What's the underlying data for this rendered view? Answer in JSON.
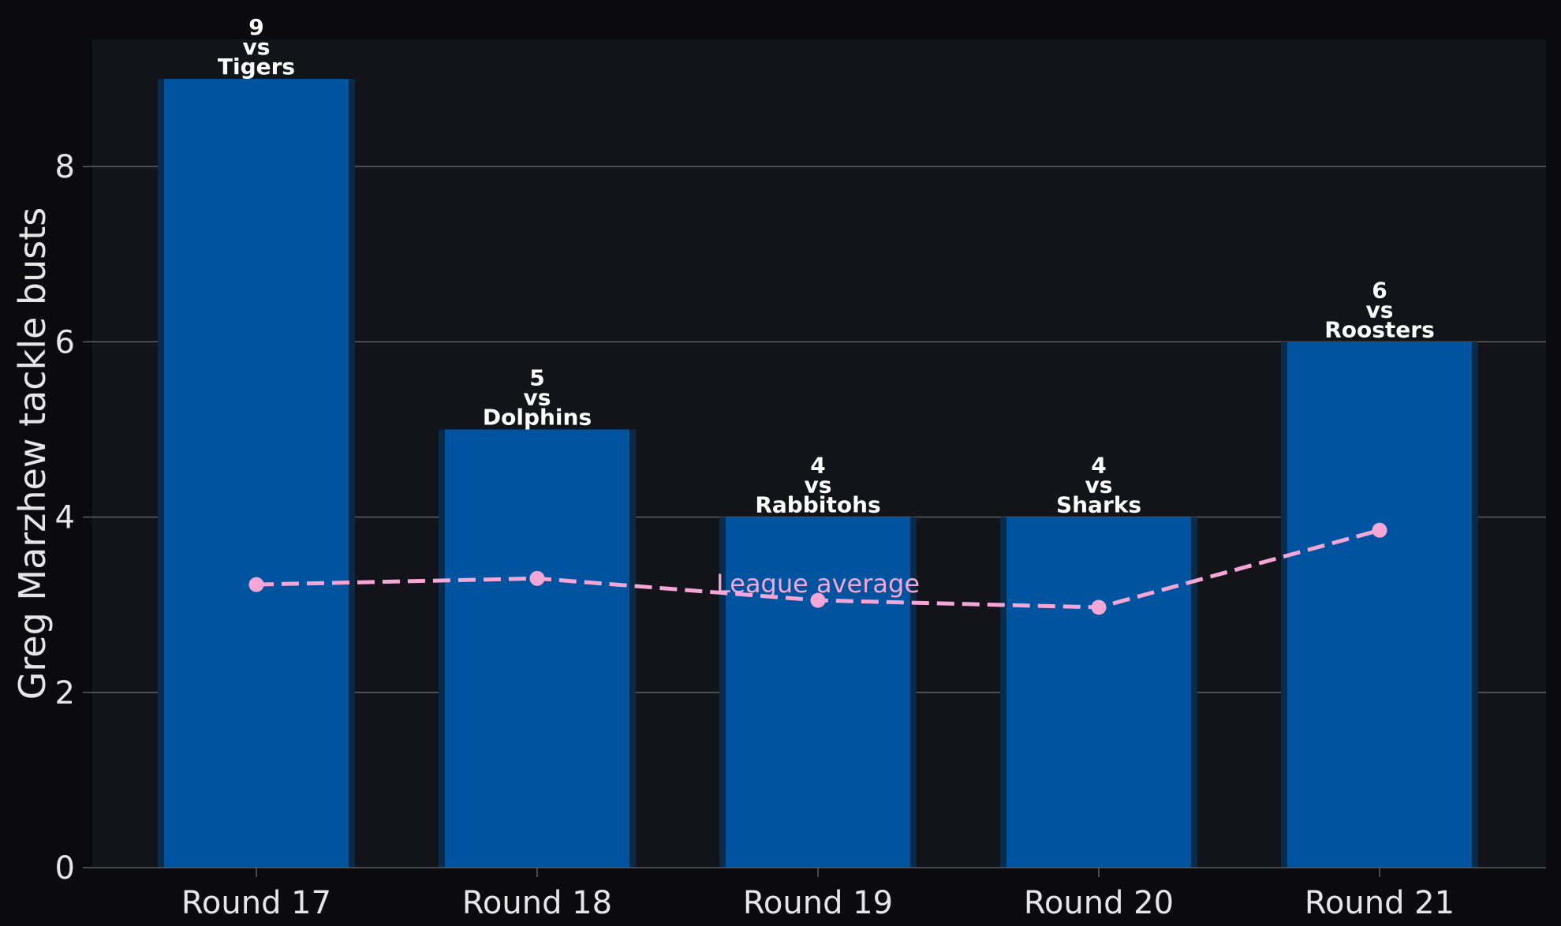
{
  "chart_data": {
    "type": "bar",
    "categories": [
      "Round 17",
      "Round 18",
      "Round 19",
      "Round 20",
      "Round 21"
    ],
    "opponents": [
      "Tigers",
      "Dolphins",
      "Rabbitohs",
      "Sharks",
      "Roosters"
    ],
    "vs_text": "vs",
    "series": [
      {
        "values": [
          9,
          5,
          4,
          4,
          6
        ]
      },
      {
        "name": "League average",
        "type": "line",
        "values": [
          3.23,
          3.3,
          3.05,
          2.97,
          3.85
        ]
      }
    ],
    "ylabel": "Greg Marzhew tackle busts",
    "xlabel": "",
    "ylim": [
      0,
      9.45
    ],
    "yticks": [
      0,
      2,
      4,
      6,
      8
    ],
    "grid": true,
    "colors": {
      "background": "#0b0b0f",
      "plot_background": "#13131a",
      "bar": "#00539f",
      "bar_shadow": "#0a2a4a",
      "line": "#f4a6d7",
      "grid": "#5a5a5a",
      "text": "#e6e6e6"
    }
  }
}
